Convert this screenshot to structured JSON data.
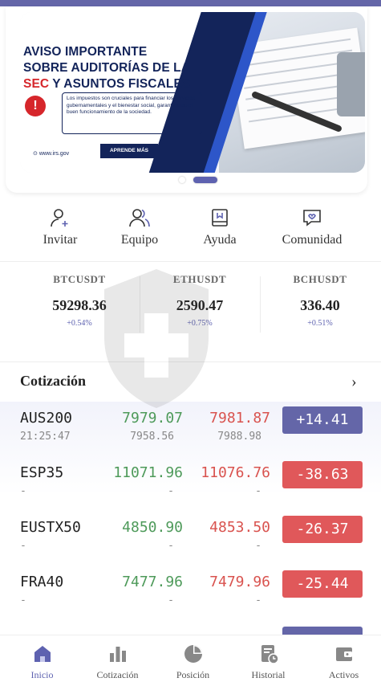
{
  "banner": {
    "headline_line1": "AVISO IMPORTANTE",
    "headline_line2": "SOBRE AUDITORÍAS DE LA",
    "headline_red": "SEC",
    "headline_line3_rest": " Y ASUNTOS FISCALES",
    "info_text": "Los impuestos son cruciales para financiar los servicios gubernamentales y el bienestar social, garantizando el buen funcionamiento de la sociedad.",
    "site": "www.irs.gov",
    "cta": "APRENDE MÁS",
    "exclamation": "!"
  },
  "quick_actions": [
    {
      "label": "Invitar",
      "icon": "user-add-icon"
    },
    {
      "label": "Equipo",
      "icon": "team-icon"
    },
    {
      "label": "Ayuda",
      "icon": "help-book-icon"
    },
    {
      "label": "Comunidad",
      "icon": "community-chat-icon"
    }
  ],
  "tickers": [
    {
      "symbol": "BTCUSDT",
      "price": "59298.36",
      "change": "+0.54%"
    },
    {
      "symbol": "ETHUSDT",
      "price": "2590.47",
      "change": "+0.75%"
    },
    {
      "symbol": "BCHUSDT",
      "price": "336.40",
      "change": "+0.51%"
    }
  ],
  "quotes_section": {
    "title": "Cotización",
    "more": "›"
  },
  "quotes": [
    {
      "symbol": "AUS200",
      "time": "21:25:47",
      "bid": "7979.07",
      "ask": "7981.87",
      "bid_sub": "7958.56",
      "ask_sub": "7988.98",
      "change": "+14.41",
      "direction": "up"
    },
    {
      "symbol": "ESP35",
      "time": "-",
      "bid": "11071.96",
      "ask": "11076.76",
      "bid_sub": "-",
      "ask_sub": "-",
      "change": "-38.63",
      "direction": "down"
    },
    {
      "symbol": "EUSTX50",
      "time": "-",
      "bid": "4850.90",
      "ask": "4853.50",
      "bid_sub": "-",
      "ask_sub": "-",
      "change": "-26.37",
      "direction": "down"
    },
    {
      "symbol": "FRA40",
      "time": "-",
      "bid": "7477.96",
      "ask": "7479.96",
      "bid_sub": "-",
      "ask_sub": "-",
      "change": "-25.44",
      "direction": "down"
    }
  ],
  "tabs": [
    {
      "label": "Inicio",
      "icon": "home-icon",
      "active": true
    },
    {
      "label": "Cotización",
      "icon": "bar-chart-icon",
      "active": false
    },
    {
      "label": "Posición",
      "icon": "pie-chart-icon",
      "active": false
    },
    {
      "label": "Historial",
      "icon": "history-icon",
      "active": false
    },
    {
      "label": "Activos",
      "icon": "wallet-icon",
      "active": false
    }
  ],
  "colors": {
    "accent": "#6466a8",
    "up": "#4e9a5a",
    "down": "#d9534f",
    "badge_down": "#e0585a"
  }
}
